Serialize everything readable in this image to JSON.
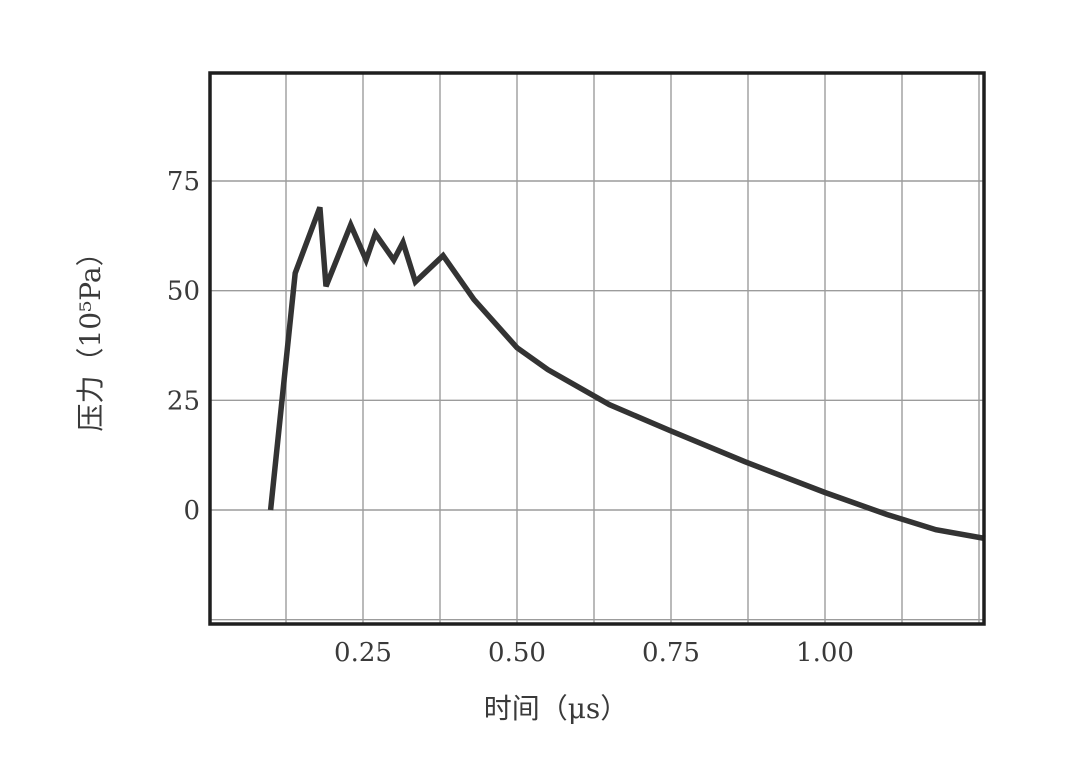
{
  "chart_data": {
    "type": "line",
    "title": "",
    "xlabel": "时间（μs）",
    "ylabel": "压力（10⁵Pa）",
    "x_ticks": [
      0.25,
      0.5,
      0.75,
      1.0
    ],
    "x_tick_labels": [
      "0.25",
      "0.50",
      "0.75",
      "1.00"
    ],
    "y_ticks": [
      0,
      25,
      50,
      75
    ],
    "y_tick_labels": [
      "0",
      "25",
      "50",
      "75"
    ],
    "xlim": [
      0.0,
      1.3
    ],
    "ylim": [
      -26,
      100
    ],
    "grid": true,
    "legend": "none",
    "colors": {
      "line": "#333333",
      "grid": "#9c9c9c",
      "frame": "#1e1e1e",
      "text": "#3a3a3a"
    },
    "series": [
      {
        "x": [
          0.1,
          0.14,
          0.18,
          0.19,
          0.23,
          0.255,
          0.27,
          0.3,
          0.315,
          0.335,
          0.38,
          0.43,
          0.5,
          0.55,
          0.65,
          0.75,
          0.87,
          1.0,
          1.1,
          1.18,
          1.26
        ],
        "y": [
          0,
          54,
          69,
          51,
          65,
          57,
          63,
          57,
          61,
          52,
          58,
          48,
          37,
          32,
          24,
          18,
          11,
          4,
          -1,
          -4.5,
          -6.5
        ]
      }
    ]
  }
}
